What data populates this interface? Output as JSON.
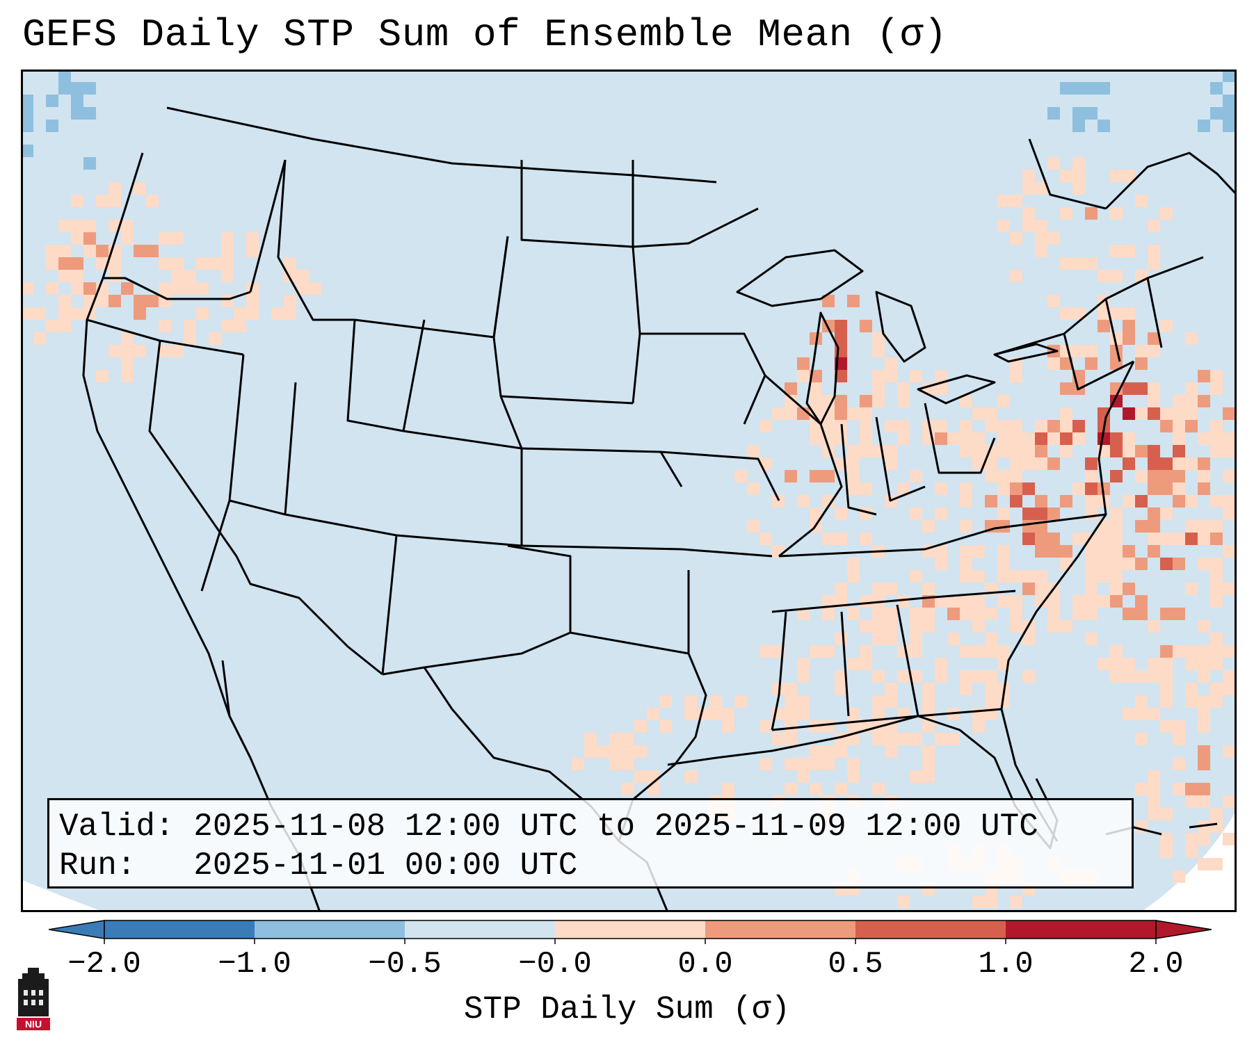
{
  "title": "GEFS Daily STP Sum of Ensemble Mean (σ)",
  "info": {
    "valid_line": "Valid: 2025-11-08 12:00 UTC to 2025-11-09 12:00 UTC",
    "run_line": "Run:   2025-11-01 00:00 UTC"
  },
  "colorbar": {
    "label": "STP Daily Sum (σ)",
    "ticks": [
      "−2.0",
      "−1.0",
      "−0.5",
      "−0.0",
      "0.0",
      "0.5",
      "1.0",
      "2.0"
    ],
    "colors": [
      "#3a7cb8",
      "#8fbfdf",
      "#d1e4f0",
      "#f7f7f7",
      "#fddbc7",
      "#ee9b7d",
      "#d6604d",
      "#b2182b"
    ],
    "extend": "both"
  },
  "map": {
    "background_color": "#d1e4f0",
    "ocean_outside_color": "#ffffff",
    "region": "Contiguous United States, southern Canada, northern Mexico",
    "highlights": [
      {
        "area": "Pacific Northwest coast",
        "level": "0.5 to 2.0"
      },
      {
        "area": "Lake Michigan / Great Lakes",
        "level": "1.0 to 2.0"
      },
      {
        "area": "Mid-Atlantic coast and western Atlantic",
        "level": "1.0 to 2.0"
      },
      {
        "area": "Southeast US and Gulf of Mexico",
        "level": "0.0 to 1.0"
      }
    ]
  },
  "logo": {
    "text": "NIU",
    "color": "#c8102e"
  }
}
